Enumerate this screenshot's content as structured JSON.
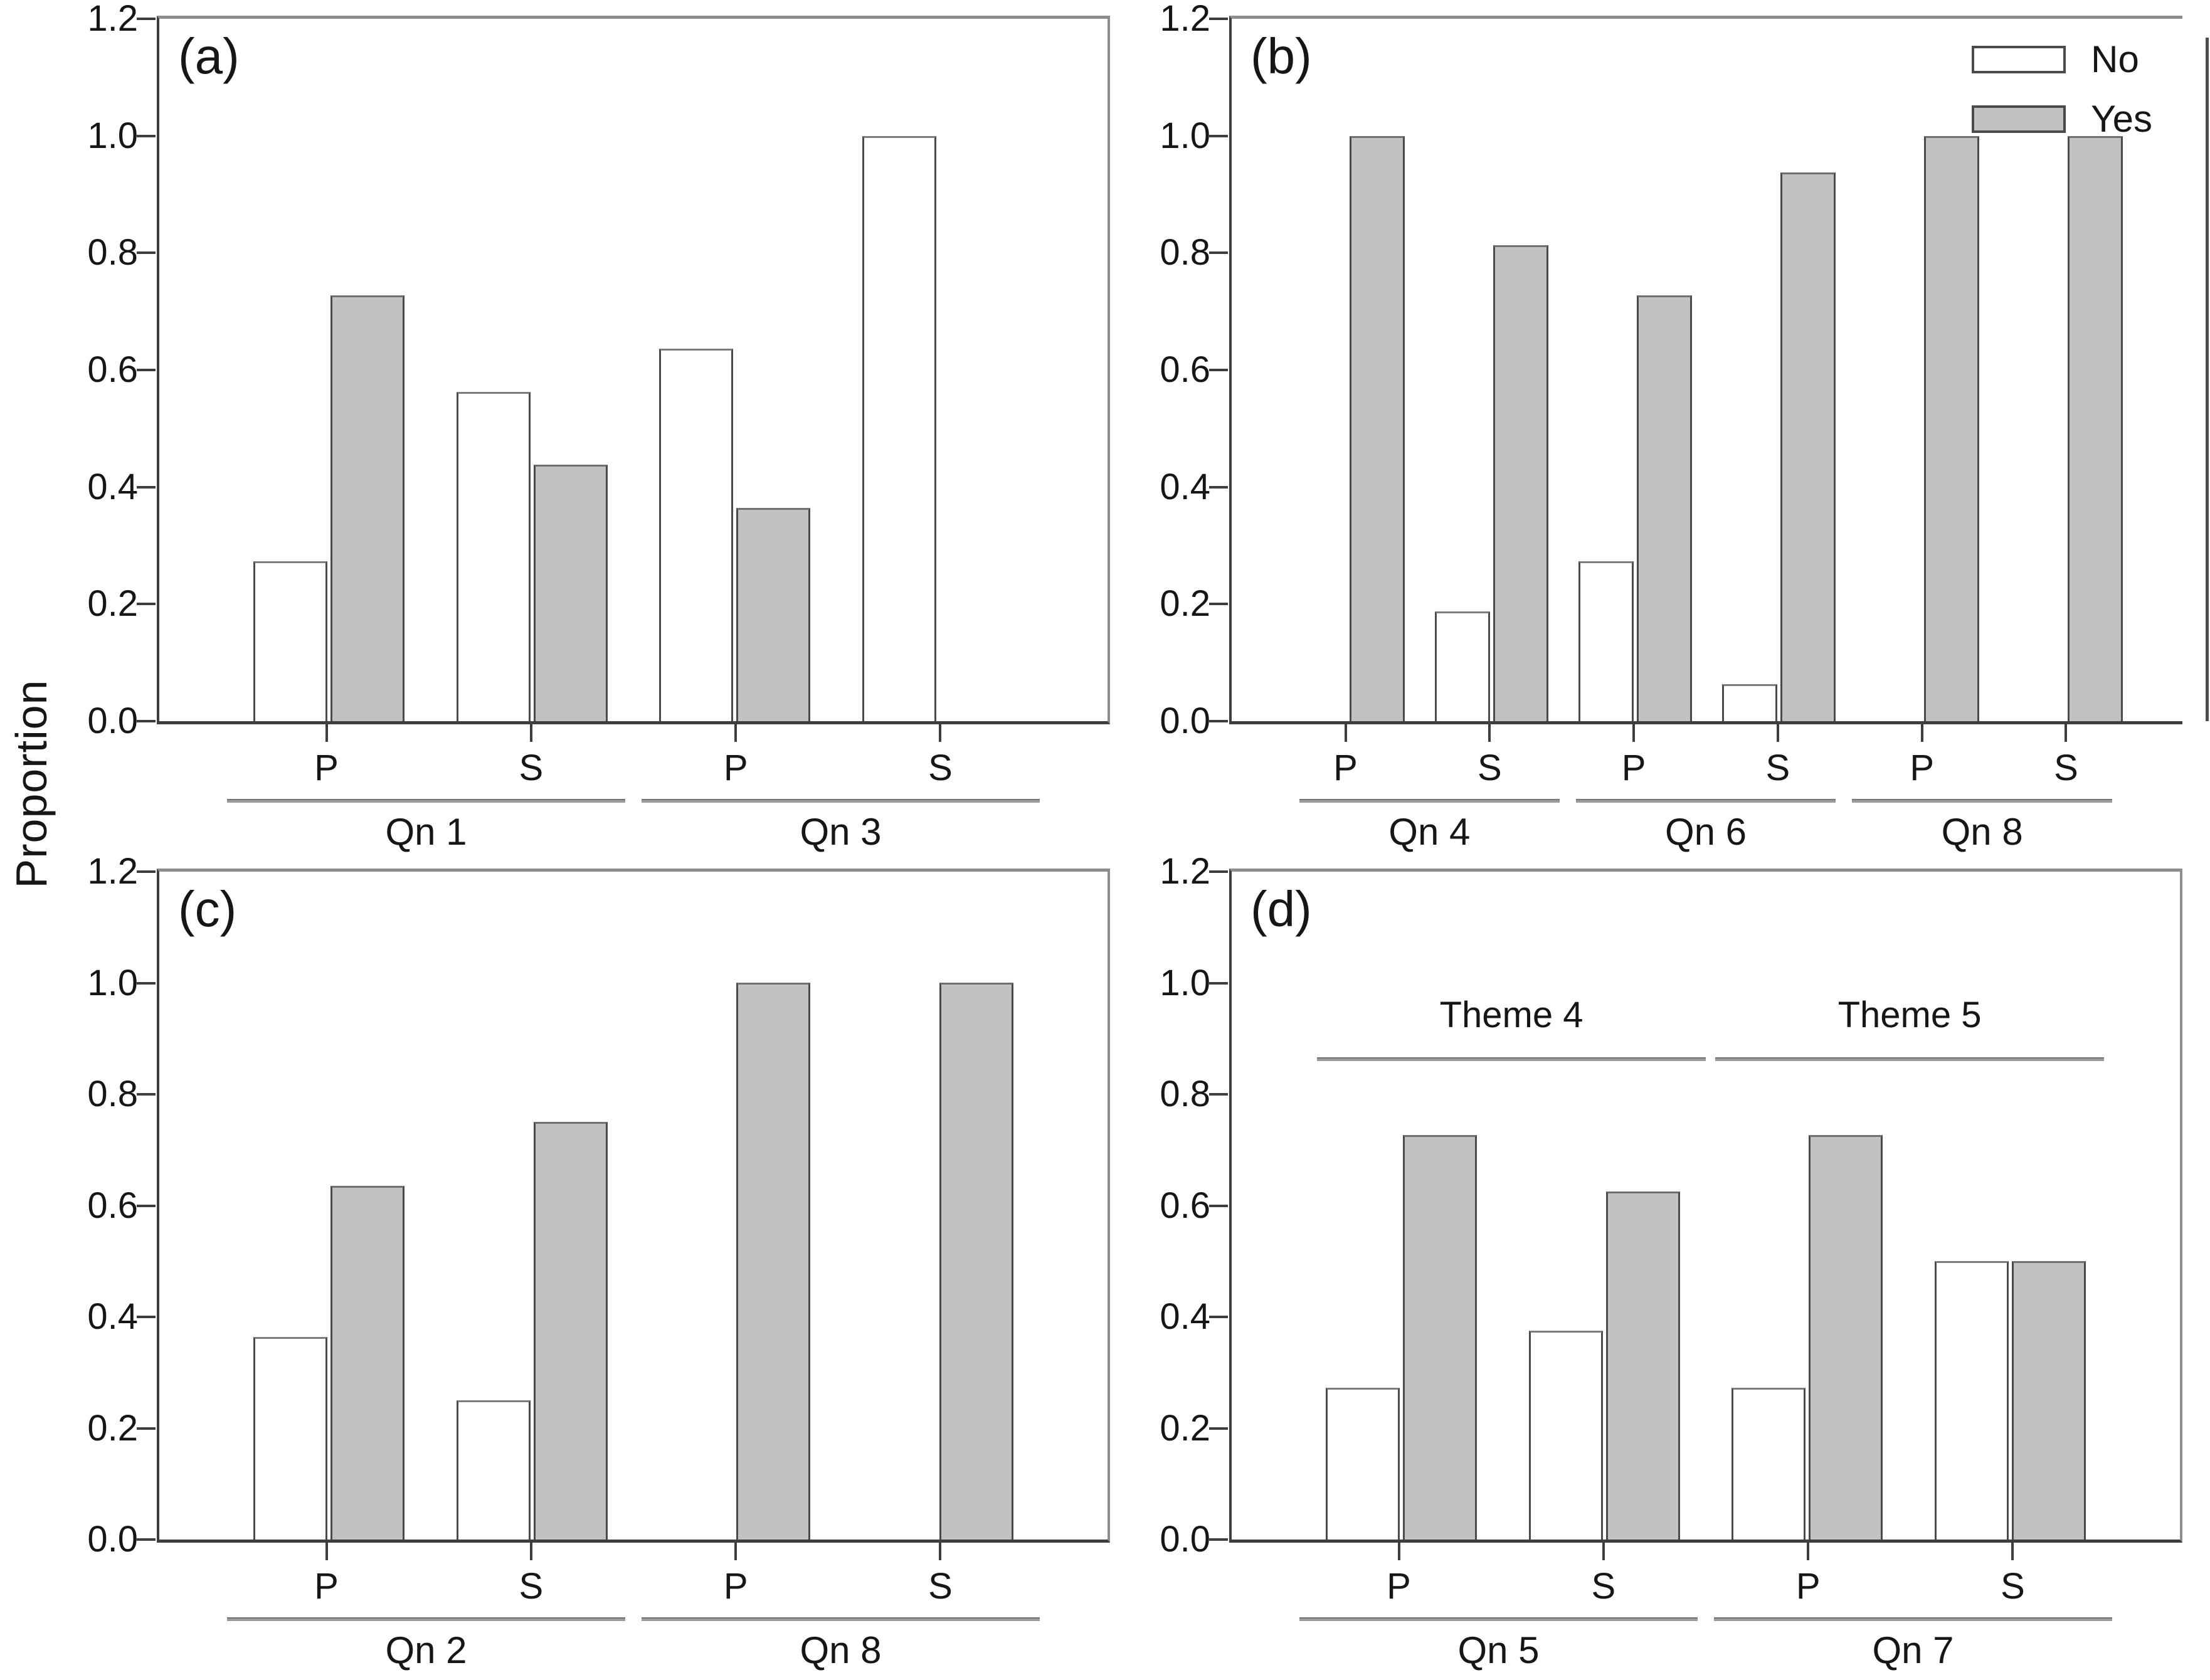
{
  "figure": {
    "y_axis_title": "Proportion",
    "y_ticks": [
      "0.0",
      "0.2",
      "0.4",
      "0.6",
      "0.8",
      "1.0",
      "1.2"
    ],
    "y_max": 1.2,
    "legend": {
      "no_label": "No",
      "yes_label": "Yes"
    },
    "colors": {
      "no_fill": "#ffffff",
      "yes_fill": "#c2c2c2",
      "bar_border": "#4a4a4a",
      "axis_dark": "#3e3e3e",
      "axis_light": "#8e8e8e",
      "group_line": "#9b9b9b"
    }
  },
  "chart_data": [
    {
      "type": "bar",
      "panel": "(a)",
      "ylabel": "Proportion",
      "ylim": [
        0,
        1.2
      ],
      "series": [
        "No",
        "Yes"
      ],
      "legend": false,
      "groups": [
        {
          "label": "Qn 1",
          "bars": [
            {
              "tick": "P",
              "No": 0.273,
              "Yes": 0.727
            },
            {
              "tick": "S",
              "No": 0.563,
              "Yes": 0.438
            }
          ]
        },
        {
          "label": "Qn 3",
          "bars": [
            {
              "tick": "P",
              "No": 0.636,
              "Yes": 0.364
            },
            {
              "tick": "S",
              "No": 1.0,
              "Yes": 0.0
            }
          ]
        }
      ]
    },
    {
      "type": "bar",
      "panel": "(b)",
      "ylabel": "Proportion",
      "ylim": [
        0,
        1.2
      ],
      "series": [
        "No",
        "Yes"
      ],
      "legend": true,
      "detached_right_spine": true,
      "groups": [
        {
          "label": "Qn 4",
          "bars": [
            {
              "tick": "P",
              "No": 0.0,
              "Yes": 1.0
            },
            {
              "tick": "S",
              "No": 0.188,
              "Yes": 0.813
            }
          ]
        },
        {
          "label": "Qn 6",
          "bars": [
            {
              "tick": "P",
              "No": 0.273,
              "Yes": 0.727
            },
            {
              "tick": "S",
              "No": 0.063,
              "Yes": 0.938
            }
          ]
        },
        {
          "label": "Qn 8",
          "bars": [
            {
              "tick": "P",
              "No": 0.0,
              "Yes": 1.0
            },
            {
              "tick": "S",
              "No": 0.0,
              "Yes": 1.0
            }
          ]
        }
      ]
    },
    {
      "type": "bar",
      "panel": "(c)",
      "ylabel": "Proportion",
      "ylim": [
        0,
        1.2
      ],
      "series": [
        "No",
        "Yes"
      ],
      "legend": false,
      "groups": [
        {
          "label": "Qn 2",
          "bars": [
            {
              "tick": "P",
              "No": 0.364,
              "Yes": 0.636
            },
            {
              "tick": "S",
              "No": 0.25,
              "Yes": 0.75
            }
          ]
        },
        {
          "label": "Qn 8",
          "bars": [
            {
              "tick": "P",
              "No": 0.0,
              "Yes": 1.0
            },
            {
              "tick": "S",
              "No": 0.0,
              "Yes": 1.0
            }
          ]
        }
      ]
    },
    {
      "type": "bar",
      "panel": "(d)",
      "ylabel": "Proportion",
      "ylim": [
        0,
        1.2
      ],
      "series": [
        "No",
        "Yes"
      ],
      "legend": false,
      "annotations": [
        {
          "text": "Theme 4"
        },
        {
          "text": "Theme 5"
        }
      ],
      "groups": [
        {
          "label": "Qn 5",
          "bars": [
            {
              "tick": "P",
              "No": 0.273,
              "Yes": 0.727
            },
            {
              "tick": "S",
              "No": 0.375,
              "Yes": 0.625
            }
          ]
        },
        {
          "label": "Qn 7",
          "bars": [
            {
              "tick": "P",
              "No": 0.273,
              "Yes": 0.727
            },
            {
              "tick": "S",
              "No": 0.5,
              "Yes": 0.5
            }
          ]
        }
      ]
    }
  ]
}
